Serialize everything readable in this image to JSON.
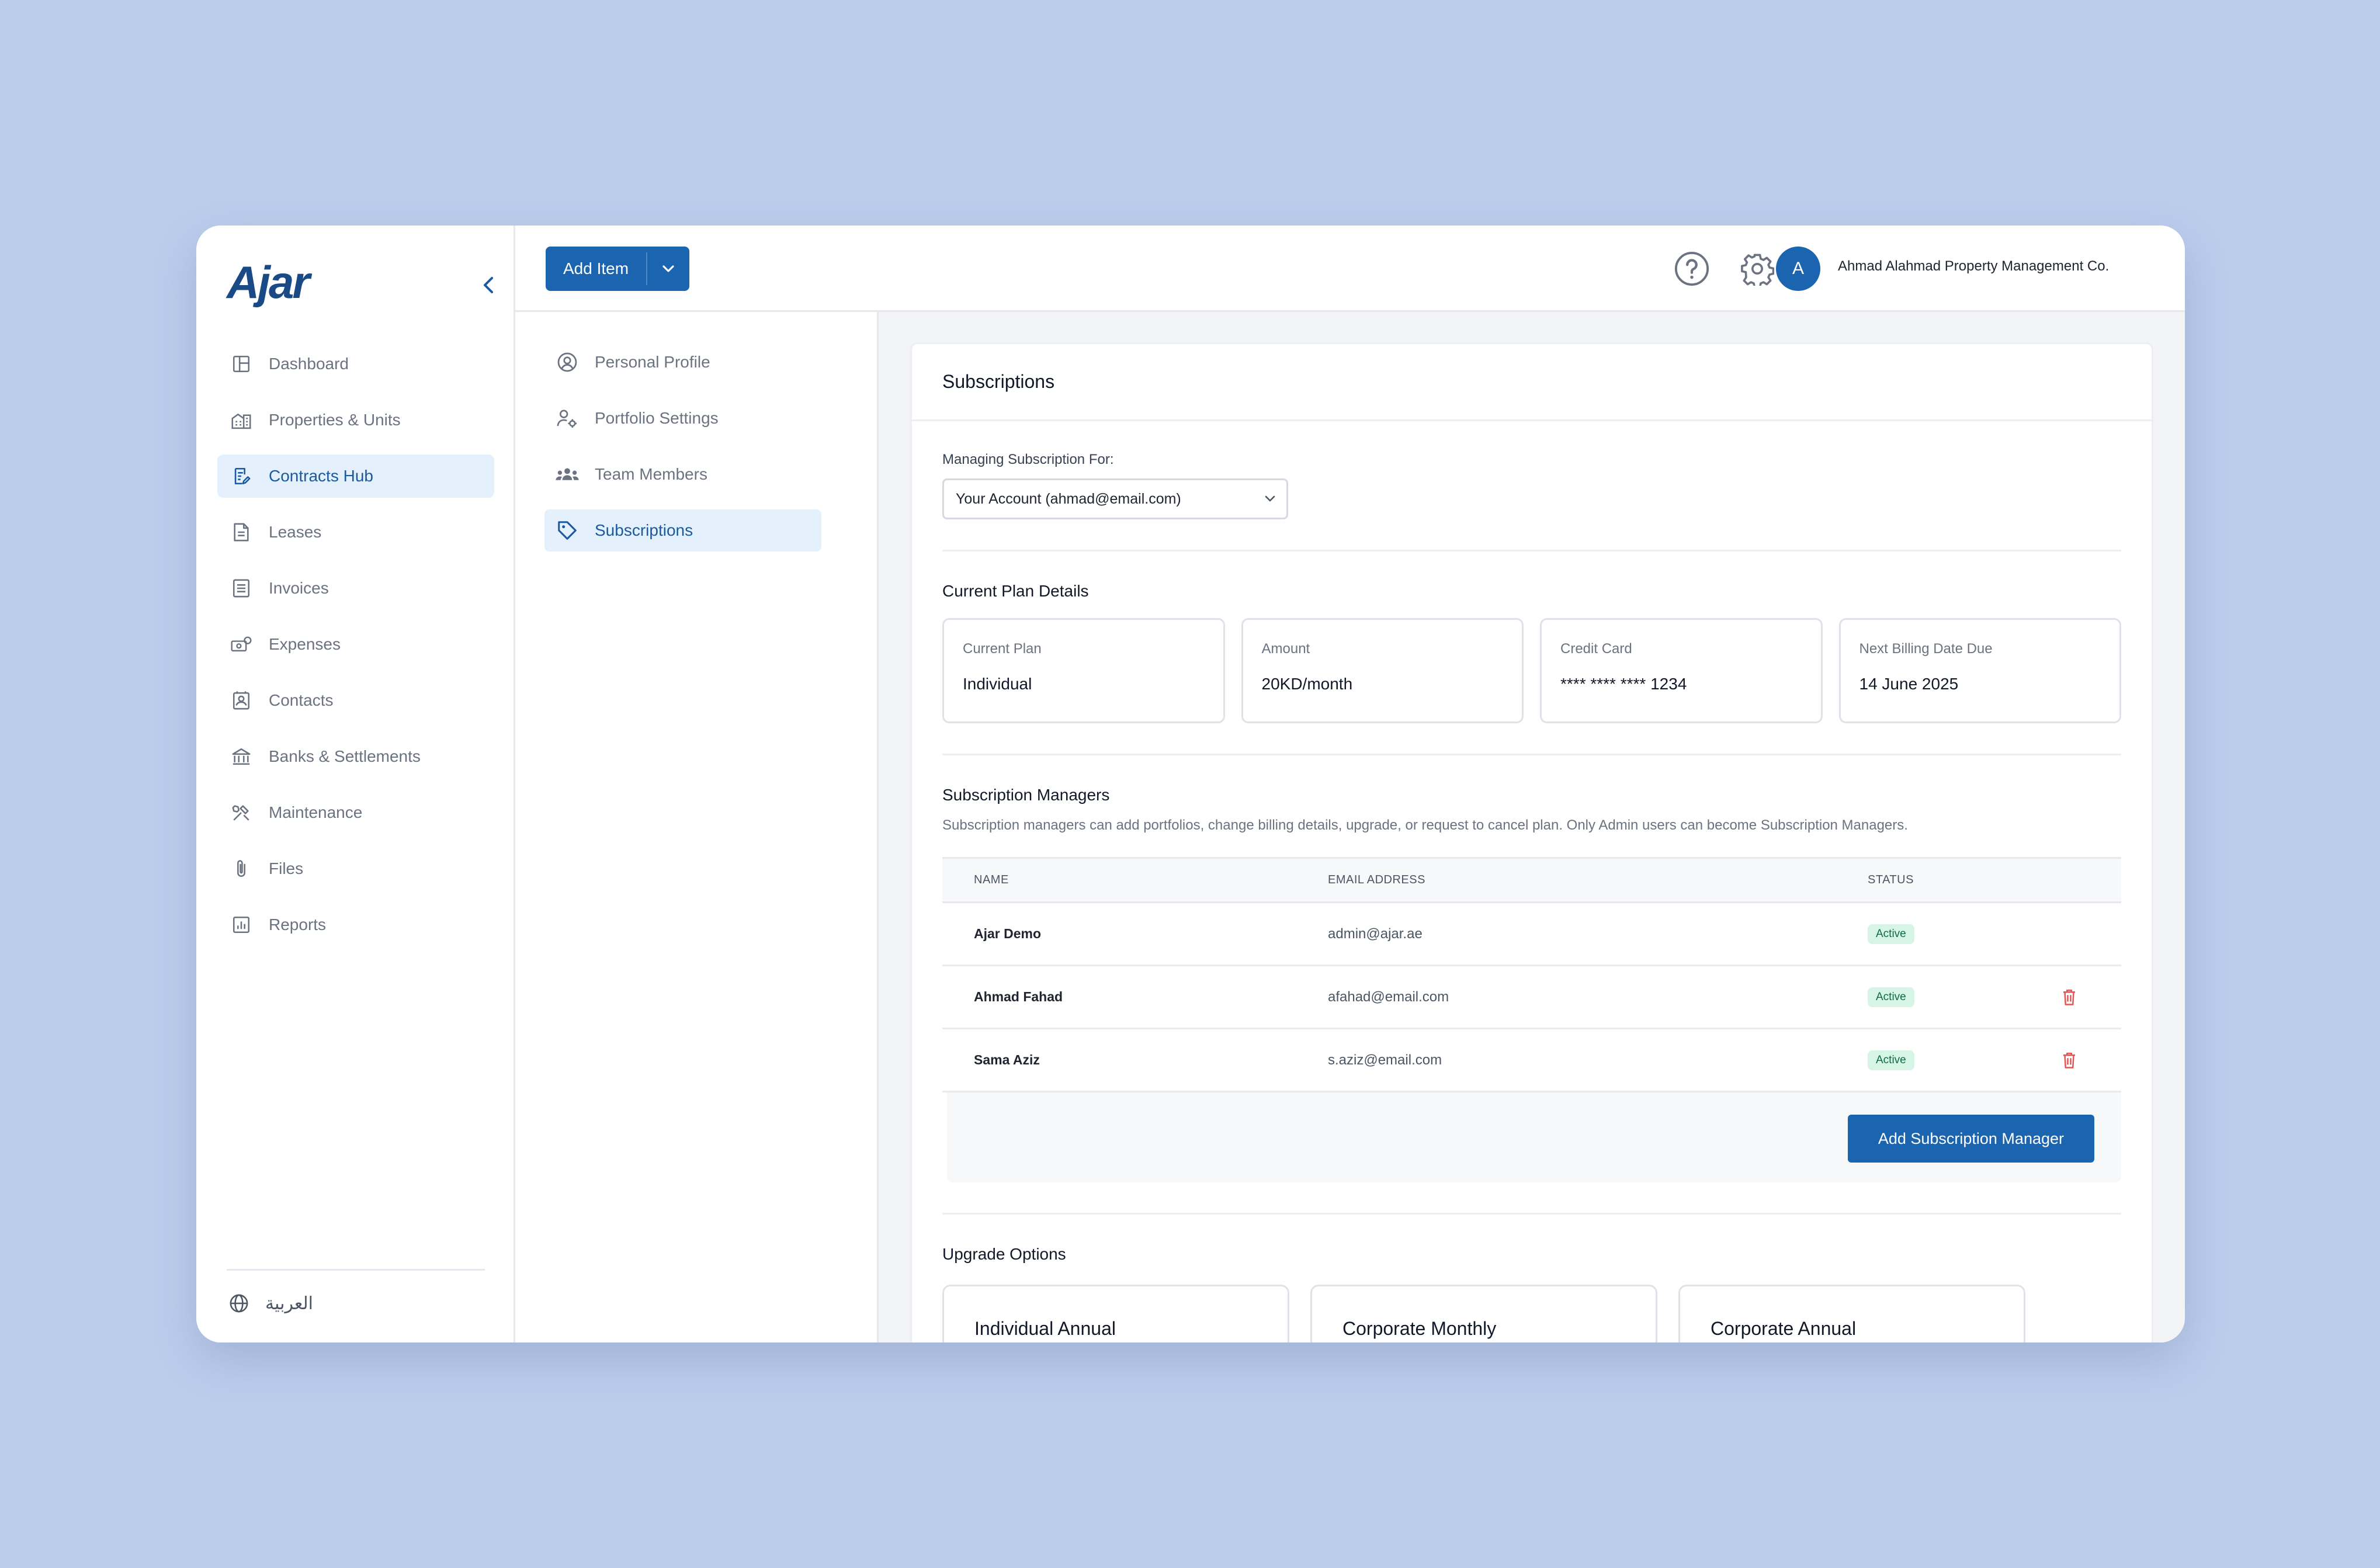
{
  "app": {
    "logo": "Ajar"
  },
  "sidebar": {
    "items": [
      {
        "label": "Dashboard",
        "icon": "dashboard-icon",
        "active": false
      },
      {
        "label": "Properties & Units",
        "icon": "building-icon",
        "active": false
      },
      {
        "label": "Contracts Hub",
        "icon": "contract-icon",
        "active": true
      },
      {
        "label": "Leases",
        "icon": "document-icon",
        "active": false
      },
      {
        "label": "Invoices",
        "icon": "invoice-icon",
        "active": false
      },
      {
        "label": "Expenses",
        "icon": "cash-icon",
        "active": false
      },
      {
        "label": "Contacts",
        "icon": "contacts-icon",
        "active": false
      },
      {
        "label": "Banks & Settlements",
        "icon": "bank-icon",
        "active": false
      },
      {
        "label": "Maintenance",
        "icon": "tools-icon",
        "active": false
      },
      {
        "label": "Files",
        "icon": "paperclip-icon",
        "active": false
      },
      {
        "label": "Reports",
        "icon": "chart-icon",
        "active": false
      }
    ],
    "language_label": "العربية"
  },
  "topbar": {
    "add_item_label": "Add Item",
    "avatar_initial": "A",
    "org_name": "Ahmad Alahmad Property Management Co."
  },
  "settings_menu": {
    "items": [
      {
        "label": "Personal Profile",
        "icon": "user-circle-icon",
        "active": false
      },
      {
        "label": "Portfolio Settings",
        "icon": "user-gear-icon",
        "active": false
      },
      {
        "label": "Team Members",
        "icon": "team-icon",
        "active": false
      },
      {
        "label": "Subscriptions",
        "icon": "tag-icon",
        "active": true
      }
    ]
  },
  "subscriptions": {
    "title": "Subscriptions",
    "managing_label": "Managing Subscription For:",
    "managing_value": "Your Account (ahmad@email.com)",
    "plan_details_title": "Current Plan Details",
    "plan": [
      {
        "key": "Current Plan",
        "value": "Individual"
      },
      {
        "key": "Amount",
        "value": "20KD/month"
      },
      {
        "key": "Credit Card",
        "value": "**** **** **** 1234"
      },
      {
        "key": "Next Billing Date Due",
        "value": "14 June 2025"
      }
    ],
    "managers_title": "Subscription Managers",
    "managers_desc": "Subscription managers can add portfolios, change billing details, upgrade, or request to cancel plan. Only Admin users can become Subscription Managers.",
    "columns": {
      "name": "NAME",
      "email": "EMAIL ADDRESS",
      "status": "STATUS"
    },
    "managers": [
      {
        "name": "Ajar Demo",
        "email": "admin@ajar.ae",
        "status": "Active",
        "deletable": false
      },
      {
        "name": "Ahmad Fahad",
        "email": "afahad@email.com",
        "status": "Active",
        "deletable": true
      },
      {
        "name": "Sama Aziz",
        "email": "s.aziz@email.com",
        "status": "Active",
        "deletable": true
      }
    ],
    "add_manager_label": "Add Subscription Manager",
    "upgrade_title": "Upgrade Options",
    "upgrade_options": [
      {
        "label": "Individual Annual"
      },
      {
        "label": "Corporate Monthly"
      },
      {
        "label": "Corporate Annual"
      }
    ]
  },
  "colors": {
    "accent": "#1a64b0",
    "active_bg": "#e4f0fc",
    "status_active_bg": "#d7f5e6",
    "delete": "#e05555",
    "page_bg": "#bccdec"
  }
}
